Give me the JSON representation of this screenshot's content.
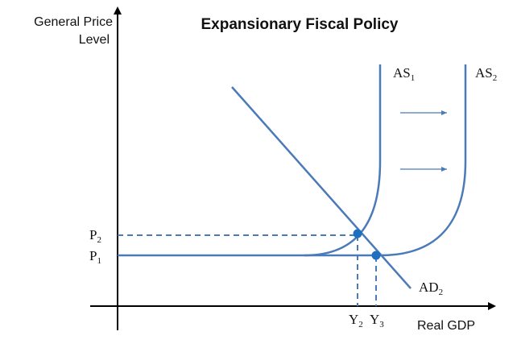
{
  "title": "Expansionary Fiscal Policy",
  "y_axis_label": [
    "General Price",
    "Level"
  ],
  "x_axis_label": "Real GDP",
  "curves": {
    "as1": {
      "base": "AS",
      "sub": "1"
    },
    "as2": {
      "base": "AS",
      "sub": "2"
    },
    "ad2": {
      "base": "AD",
      "sub": "2"
    }
  },
  "y_ticks": [
    {
      "base": "P",
      "sub": "2"
    },
    {
      "base": "P",
      "sub": "1"
    }
  ],
  "x_ticks": [
    {
      "base": "Y",
      "sub": "2"
    },
    {
      "base": "Y",
      "sub": "3"
    }
  ],
  "colors": {
    "axis": "#000000",
    "curve": "#4a7ab8",
    "point": "#1f6fc0",
    "text": "#111111"
  }
}
